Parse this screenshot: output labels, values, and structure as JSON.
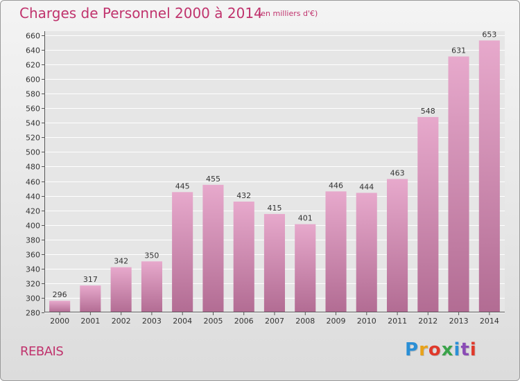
{
  "header": {
    "title": "Charges de Personnel 2000 à 2014",
    "unit": "(en milliers d'€)"
  },
  "footer": {
    "commune": "REBAIS",
    "logo_text": "Proxiti",
    "logo_colors": [
      "#2a8fd6",
      "#e8a21a",
      "#e0392b",
      "#3aa34a",
      "#2a8fd6",
      "#8a4bb5",
      "#e0392b"
    ]
  },
  "chart_data": {
    "type": "bar",
    "categories": [
      "2000",
      "2001",
      "2002",
      "2003",
      "2004",
      "2005",
      "2006",
      "2007",
      "2008",
      "2009",
      "2010",
      "2011",
      "2012",
      "2013",
      "2014"
    ],
    "values": [
      296,
      317,
      342,
      350,
      445,
      455,
      432,
      415,
      401,
      446,
      444,
      463,
      548,
      631,
      653
    ],
    "title": "Charges de Personnel 2000 à 2014",
    "xlabel": "",
    "ylabel": "",
    "ylim": [
      280,
      660
    ],
    "ytick_step": 20,
    "grid": true,
    "bar_color_top": "#e7a9cc",
    "bar_color_bottom": "#b26c93",
    "grid_color": "#ffffff"
  }
}
